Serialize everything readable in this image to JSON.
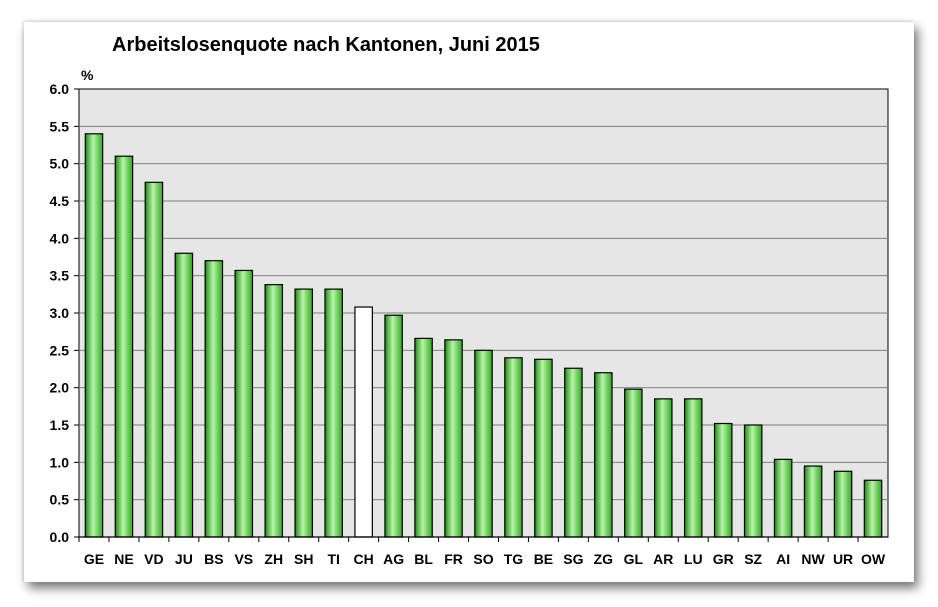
{
  "chart_data": {
    "type": "bar",
    "title": "Arbeitslosenquote nach Kantonen, Juni 2015",
    "ylabel": "%",
    "xlabel": "",
    "ylim": [
      0,
      6
    ],
    "yticks": [
      "0.0",
      "0.5",
      "1.0",
      "1.5",
      "2.0",
      "2.5",
      "3.0",
      "3.5",
      "4.0",
      "4.5",
      "5.0",
      "5.5",
      "6.0"
    ],
    "grid": true,
    "categories": [
      "GE",
      "NE",
      "VD",
      "JU",
      "BS",
      "VS",
      "ZH",
      "SH",
      "TI",
      "CH",
      "AG",
      "BL",
      "FR",
      "SO",
      "TG",
      "BE",
      "SG",
      "ZG",
      "GL",
      "AR",
      "LU",
      "GR",
      "SZ",
      "AI",
      "NW",
      "UR",
      "OW"
    ],
    "values": [
      5.4,
      5.1,
      4.75,
      3.8,
      3.7,
      3.57,
      3.38,
      3.32,
      3.32,
      3.08,
      2.97,
      2.66,
      2.64,
      2.5,
      2.4,
      2.38,
      2.26,
      2.2,
      1.98,
      1.85,
      1.85,
      1.52,
      1.5,
      1.04,
      0.95,
      0.88,
      0.76
    ],
    "highlight_category": "CH",
    "colors": {
      "bar": "#3fcc2e",
      "bar_highlight": "#ffffff",
      "plot_background": "#e6e6e6",
      "gridline": "#7f7f7f"
    }
  }
}
